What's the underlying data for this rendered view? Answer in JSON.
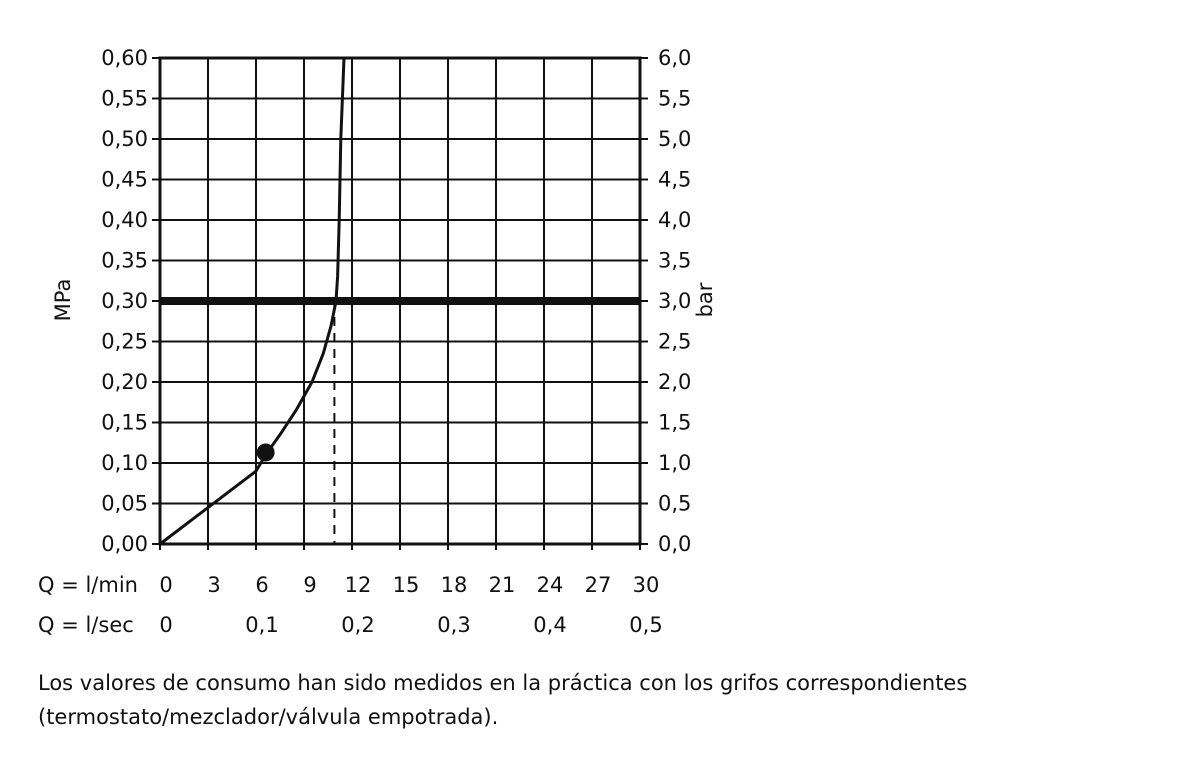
{
  "chart_data": {
    "type": "line",
    "y_left": {
      "label": "MPa",
      "range": [
        0,
        0.6
      ],
      "ticks": [
        "0,00",
        "0,05",
        "0,10",
        "0,15",
        "0,20",
        "0,25",
        "0,30",
        "0,35",
        "0,40",
        "0,45",
        "0,50",
        "0,55",
        "0,60"
      ]
    },
    "y_right": {
      "label": "bar",
      "range": [
        0,
        6
      ],
      "ticks": [
        "0,0",
        "0,5",
        "1,0",
        "1,5",
        "2,0",
        "2,5",
        "3,0",
        "3,5",
        "4,0",
        "4,5",
        "5,0",
        "5,5",
        "6,0"
      ]
    },
    "x_lmin": {
      "label": "Q = l/min",
      "range": [
        0,
        30
      ],
      "ticks": [
        "0",
        "3",
        "6",
        "9",
        "12",
        "15",
        "18",
        "21",
        "24",
        "27",
        "30"
      ]
    },
    "x_lsec": {
      "label": "Q = l/sec",
      "ticks": [
        {
          "text": "0",
          "at_lmin": 0
        },
        {
          "text": "0,1",
          "at_lmin": 6
        },
        {
          "text": "0,2",
          "at_lmin": 12
        },
        {
          "text": "0,3",
          "at_lmin": 18
        },
        {
          "text": "0,4",
          "at_lmin": 24
        },
        {
          "text": "0,5",
          "at_lmin": 30
        }
      ]
    },
    "grid": true,
    "series": [
      {
        "x": [
          0,
          2,
          4,
          6,
          6.6,
          7.5,
          8.5,
          9.5,
          10.2,
          10.7,
          11.0,
          11.1,
          11.2,
          11.3,
          11.5
        ],
        "y": [
          0,
          0.03,
          0.06,
          0.09,
          0.11,
          0.135,
          0.165,
          0.2,
          0.235,
          0.27,
          0.3,
          0.33,
          0.4,
          0.5,
          0.6
        ]
      }
    ],
    "reference_line_mpa": 0.3,
    "marker_point": {
      "x": 6.6,
      "y": 0.113
    },
    "dashed_drop_x": 10.9
  },
  "note": {
    "line1": "Los valores de consumo han sido medidos en la práctica con los grifos correspondientes",
    "line2": "(termostato/mezclador/válvula empotrada)."
  },
  "colors": {
    "ink": "#111111",
    "background": "#ffffff"
  }
}
